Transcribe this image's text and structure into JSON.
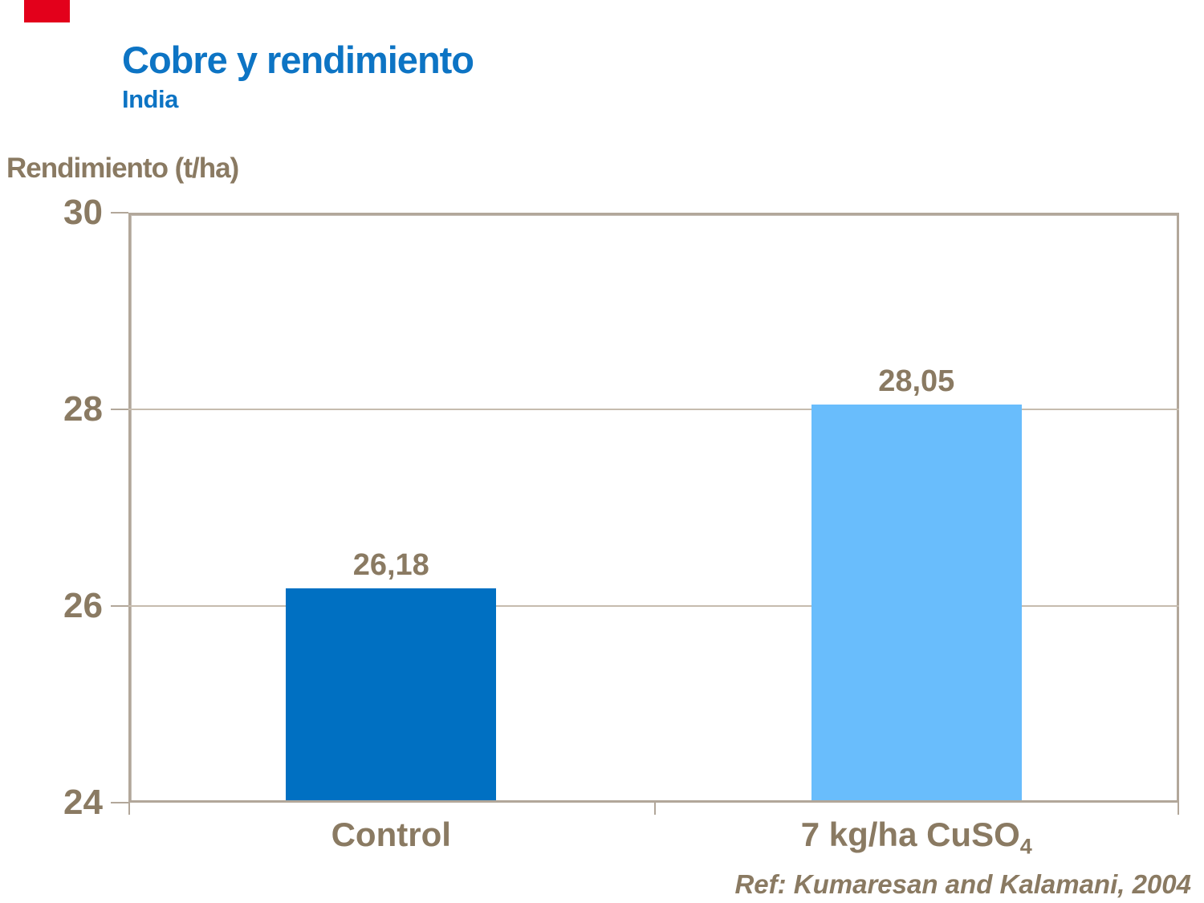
{
  "slide": {
    "title": "Cobre y rendimiento",
    "subtitle": "India",
    "title_color": "#0d74c4",
    "accent_bar_color": "#e3001b",
    "text_color": "#8a7a62"
  },
  "chart_data": {
    "type": "bar",
    "title": "Cobre y rendimiento",
    "subtitle": "India",
    "ylabel": "Rendimiento (t/ha)",
    "xlabel": "",
    "categories": [
      {
        "label": "Control",
        "sub": ""
      },
      {
        "label": "7 kg/ha CuSO",
        "sub": "4"
      }
    ],
    "values": [
      26.18,
      28.05
    ],
    "value_labels": [
      "26,18",
      "28,05"
    ],
    "bar_colors": [
      "#0070c2",
      "#69bdfc"
    ],
    "ylim": [
      24,
      30
    ],
    "yticks": [
      30,
      28,
      26,
      24
    ],
    "ytick_labels": [
      "30",
      "28",
      "26",
      "24"
    ],
    "grid": true,
    "legend": false,
    "frame_color": "#b2a79a",
    "gridline_color": "#c6bcae",
    "label_color": "#8a7a62"
  },
  "footer": {
    "reference": "Ref: Kumaresan  and Kalamani,  2004"
  }
}
